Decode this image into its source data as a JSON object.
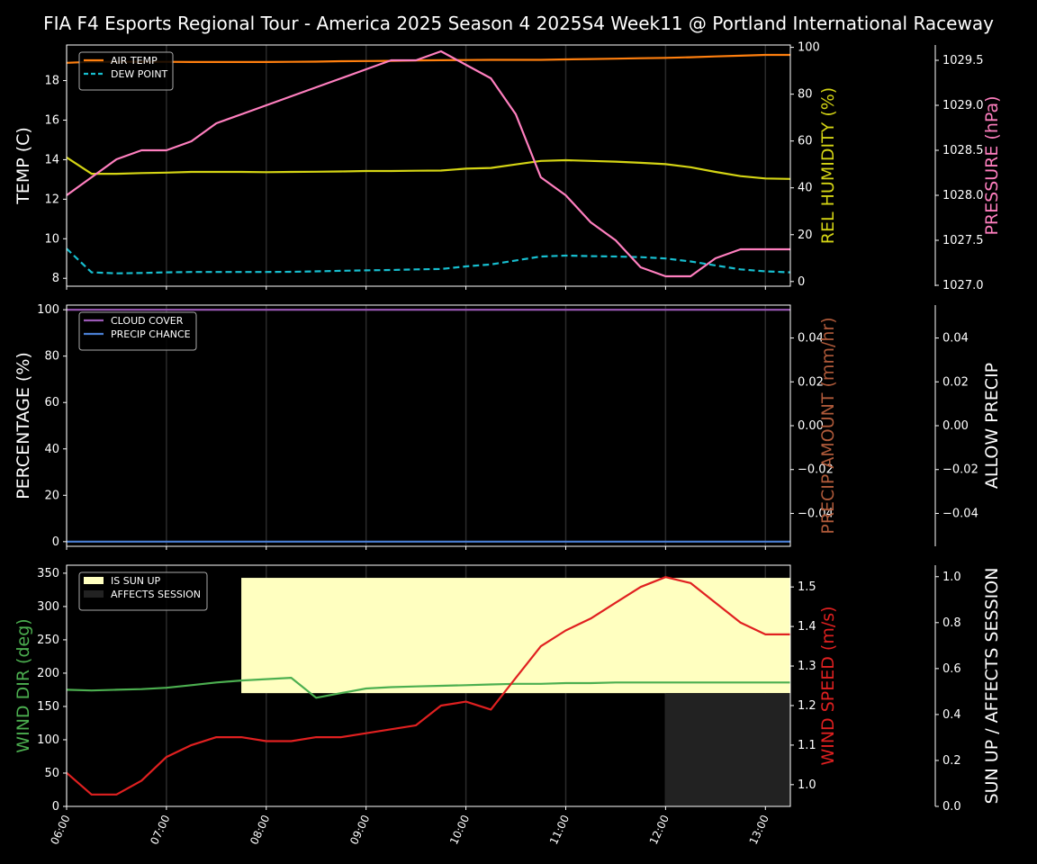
{
  "title": "FIA F4 Esports Regional Tour - America 2025 Season 4 2025S4 Week11 @ Portland International Raceway",
  "colors": {
    "background": "#000000",
    "air_temp": "#ff7f0e",
    "dew_point": "#17becf",
    "humidity": "#d4d414",
    "pressure": "#ff7fbf",
    "cloud_cover": "#9b59b6",
    "precip_chance": "#4a7fd4",
    "precip_amount": "#b05a3a",
    "wind_dir": "#4caf50",
    "wind_speed": "#e02020",
    "sun_up": "#ffffc0",
    "affects_session": "#222222"
  },
  "chart_data": [
    {
      "type": "line",
      "panel": "weather",
      "x": [
        "06:00",
        "06:15",
        "06:30",
        "06:45",
        "07:00",
        "07:15",
        "07:30",
        "07:45",
        "08:00",
        "08:15",
        "08:30",
        "08:45",
        "09:00",
        "09:15",
        "09:30",
        "09:45",
        "10:00",
        "10:15",
        "10:30",
        "10:45",
        "11:00",
        "11:15",
        "11:30",
        "11:45",
        "12:00",
        "12:15",
        "12:30",
        "12:45",
        "13:00",
        "13:15"
      ],
      "xlabel": "",
      "xticks": [
        "06:00",
        "07:00",
        "08:00",
        "09:00",
        "10:00",
        "11:00",
        "12:00",
        "13:00"
      ],
      "left_axis": {
        "label": "TEMP (C)",
        "ylim": [
          7.6,
          19.8
        ],
        "ticks": [
          8,
          10,
          12,
          14,
          16,
          18
        ]
      },
      "right_axis": {
        "label": "REL HUMIDITY (%)",
        "ylim": [
          -2,
          101
        ],
        "ticks": [
          0,
          20,
          40,
          60,
          80,
          100
        ]
      },
      "far_right_axis": {
        "label": "PRESSURE (hPa)",
        "ylim": [
          1026.99,
          1029.67
        ],
        "ticks": [
          "1027.0",
          "1027.5",
          "1028.0",
          "1028.5",
          "1029.0",
          "1029.5"
        ]
      },
      "legend_position": "top-left",
      "series": [
        {
          "name": "AIR TEMP",
          "axis": "left",
          "style": "solid",
          "values": [
            18.9,
            18.95,
            18.95,
            18.95,
            18.95,
            18.94,
            18.94,
            18.94,
            18.94,
            18.95,
            18.96,
            18.98,
            18.99,
            19.0,
            19.02,
            19.03,
            19.04,
            19.05,
            19.05,
            19.05,
            19.07,
            19.09,
            19.11,
            19.13,
            19.15,
            19.18,
            19.22,
            19.26,
            19.3,
            19.3
          ]
        },
        {
          "name": "DEW POINT",
          "axis": "left",
          "style": "dashed",
          "values": [
            9.5,
            8.3,
            8.25,
            8.27,
            8.3,
            8.32,
            8.32,
            8.32,
            8.32,
            8.33,
            8.35,
            8.38,
            8.4,
            8.42,
            8.45,
            8.47,
            8.6,
            8.7,
            8.9,
            9.1,
            9.15,
            9.12,
            9.1,
            9.07,
            9.0,
            8.85,
            8.65,
            8.45,
            8.35,
            8.3
          ]
        },
        {
          "name": "REL HUMIDITY",
          "axis": "right",
          "style": "solid",
          "values": [
            53,
            46,
            46,
            46.3,
            46.5,
            46.8,
            46.8,
            46.8,
            46.7,
            46.8,
            46.9,
            47,
            47.2,
            47.2,
            47.3,
            47.4,
            48.2,
            48.5,
            50,
            51.5,
            51.8,
            51.5,
            51.2,
            50.7,
            50.1,
            48.8,
            46.8,
            45,
            44,
            43.8
          ]
        },
        {
          "name": "PRESSURE",
          "axis": "far_right",
          "style": "solid",
          "values": [
            1028.0,
            1028.2,
            1028.4,
            1028.5,
            1028.5,
            1028.6,
            1028.8,
            1028.9,
            1029.0,
            1029.1,
            1029.2,
            1029.3,
            1029.4,
            1029.5,
            1029.5,
            1029.6,
            1029.45,
            1029.3,
            1028.9,
            1028.2,
            1028.0,
            1027.7,
            1027.5,
            1027.2,
            1027.1,
            1027.1,
            1027.3,
            1027.4,
            1027.4,
            1027.4
          ]
        }
      ]
    },
    {
      "type": "line",
      "panel": "precipitation",
      "x": [
        "06:00",
        "13:15"
      ],
      "left_axis": {
        "label": "PERCENTAGE (%)",
        "ylim": [
          -2,
          102
        ],
        "ticks": [
          0,
          20,
          40,
          60,
          80,
          100
        ]
      },
      "right_axis": {
        "label": "PRECIP AMOUNT (mm/hr)",
        "ylim": [
          -0.055,
          0.055
        ],
        "ticks": [
          "−0.04",
          "−0.02",
          "0.00",
          "0.02",
          "0.04"
        ]
      },
      "far_right_axis": {
        "label": "ALLOW PRECIP",
        "ylim": [
          -0.055,
          0.055
        ],
        "ticks": [
          "−0.04",
          "−0.02",
          "0.00",
          "0.02",
          "0.04"
        ]
      },
      "legend_position": "top-left",
      "series": [
        {
          "name": "CLOUD COVER",
          "axis": "left",
          "values": [
            100,
            100
          ]
        },
        {
          "name": "PRECIP CHANCE",
          "axis": "left",
          "values": [
            0,
            0
          ]
        }
      ]
    },
    {
      "type": "line",
      "panel": "wind",
      "x": [
        "06:00",
        "06:15",
        "06:30",
        "06:45",
        "07:00",
        "07:15",
        "07:30",
        "07:45",
        "08:00",
        "08:15",
        "08:30",
        "08:45",
        "09:00",
        "09:15",
        "09:30",
        "09:45",
        "10:00",
        "10:15",
        "10:30",
        "10:45",
        "11:00",
        "11:15",
        "11:30",
        "11:45",
        "12:00",
        "12:15",
        "12:30",
        "12:45",
        "13:00",
        "13:15"
      ],
      "xticks": [
        "06:00",
        "07:00",
        "08:00",
        "09:00",
        "10:00",
        "11:00",
        "12:00",
        "13:00"
      ],
      "left_axis": {
        "label": "WIND DIR (deg)",
        "ylim": [
          0,
          362
        ],
        "ticks": [
          0,
          50,
          100,
          150,
          200,
          250,
          300,
          350
        ]
      },
      "right_axis": {
        "label": "WIND SPEED (m/s)",
        "ylim": [
          0.945,
          1.555
        ],
        "ticks": [
          "1.0",
          "1.1",
          "1.2",
          "1.3",
          "1.4",
          "1.5"
        ]
      },
      "far_right_axis": {
        "label": "SUN UP / AFFECTS SESSION",
        "ylim": [
          0,
          1.05
        ],
        "ticks": [
          "0.0",
          "0.2",
          "0.4",
          "0.6",
          "0.8",
          "1.0"
        ]
      },
      "legend_position": "top-left",
      "shaded_regions": [
        {
          "name": "IS SUN UP",
          "from": "07:45",
          "to": "13:15",
          "y_from": 170,
          "y_to": 343
        },
        {
          "name": "AFFECTS SESSION",
          "from": "12:00",
          "to": "13:15",
          "y_from": 0,
          "y_to": 170
        }
      ],
      "series": [
        {
          "name": "WIND DIR",
          "axis": "left",
          "values": [
            175,
            174,
            175,
            176,
            178,
            182,
            186,
            189,
            191,
            193,
            163,
            170,
            177,
            179,
            180,
            181,
            182,
            183,
            184,
            184,
            185,
            185,
            186,
            186,
            186,
            186,
            186,
            186,
            186,
            186
          ]
        },
        {
          "name": "WIND SPEED",
          "axis": "right",
          "values": [
            1.03,
            0.975,
            0.975,
            1.01,
            1.07,
            1.1,
            1.12,
            1.12,
            1.11,
            1.11,
            1.12,
            1.12,
            1.13,
            1.14,
            1.15,
            1.2,
            1.21,
            1.19,
            1.27,
            1.35,
            1.39,
            1.42,
            1.46,
            1.5,
            1.525,
            1.51,
            1.46,
            1.41,
            1.38,
            1.38
          ]
        }
      ]
    }
  ]
}
